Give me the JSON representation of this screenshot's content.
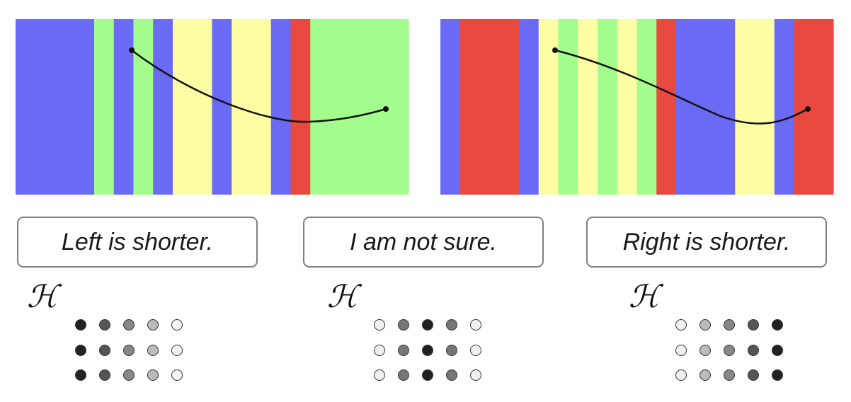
{
  "panels": [
    {
      "name": "left",
      "stripes": [
        "#6a6af5",
        "#6a6af5",
        "#6a6af5",
        "#6a6af5",
        "#a3fd8d",
        "#6a6af5",
        "#a3fd8d",
        "#6a6af5",
        "#fdfda3",
        "#fdfda3",
        "#6a6af5",
        "#fdfda3",
        "#fdfda3",
        "#6a6af5",
        "#e8493f",
        "#a3fd8d",
        "#a3fd8d",
        "#a3fd8d",
        "#a3fd8d",
        "#a3fd8d"
      ]
    },
    {
      "name": "right",
      "stripes": [
        "#6a6af5",
        "#e8493f",
        "#e8493f",
        "#e8493f",
        "#6a6af5",
        "#fdfda3",
        "#a3fd8d",
        "#fdfda3",
        "#a3fd8d",
        "#fdfda3",
        "#a3fd8d",
        "#e8493f",
        "#6a6af5",
        "#6a6af5",
        "#6a6af5",
        "#fdfda3",
        "#fdfda3",
        "#6a6af5",
        "#e8493f",
        "#e8493f"
      ]
    }
  ],
  "choices": {
    "left": "Left is shorter.",
    "unsure": "I am not sure.",
    "right": "Right is shorter."
  },
  "hypothesis_symbol": "ℋ",
  "dot_columns": {
    "left": [
      "#222222",
      "#555555",
      "#888888",
      "#bbbbbb",
      "#f4f4f4"
    ],
    "unsure": [
      "#f0f0f0",
      "#777777",
      "#222222",
      "#777777",
      "#f0f0f0"
    ],
    "right": [
      "#f0f0f0",
      "#bbbbbb",
      "#888888",
      "#555555",
      "#222222"
    ]
  }
}
